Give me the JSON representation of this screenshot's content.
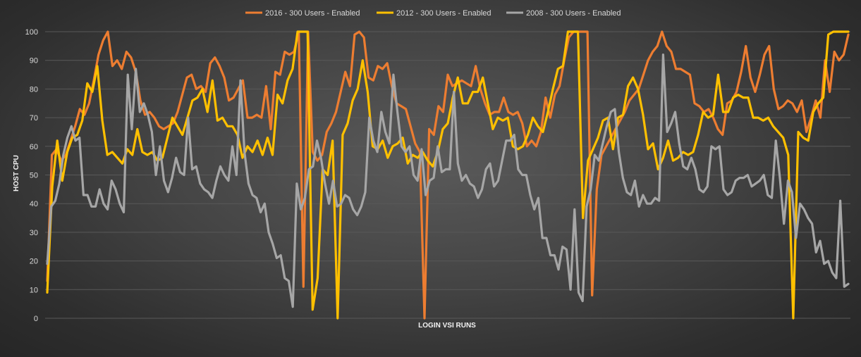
{
  "chart_data": {
    "type": "line",
    "title": "",
    "xlabel": "LOGIN VSI RUNS",
    "ylabel": "HOST CPU",
    "ylim": [
      0,
      100
    ],
    "yticks": [
      0,
      10,
      20,
      30,
      40,
      50,
      60,
      70,
      80,
      90,
      100
    ],
    "grid": true,
    "legend_position": "top",
    "series": [
      {
        "name": "2016 - 300 Users - Enabled",
        "color": "#ed7d31",
        "values": [
          13,
          57,
          59,
          55,
          57,
          62,
          67,
          73,
          71,
          75,
          83,
          92,
          97,
          100,
          88,
          90,
          87,
          93,
          91,
          86,
          76,
          71,
          72,
          70,
          67,
          66,
          67,
          68,
          72,
          78,
          84,
          85,
          80,
          81,
          79,
          89,
          91,
          88,
          84,
          76,
          77,
          80,
          83,
          70,
          70,
          71,
          70,
          81,
          66,
          86,
          85,
          93,
          92,
          93,
          100,
          11,
          100,
          58,
          55,
          57,
          65,
          68,
          72,
          79,
          86,
          81,
          99,
          100,
          98,
          84,
          83,
          88,
          87,
          89,
          81,
          75,
          74,
          73,
          67,
          61,
          58,
          0,
          66,
          64,
          74,
          72,
          85,
          81,
          82,
          83,
          82,
          81,
          88,
          80,
          75,
          71,
          72,
          72,
          77,
          72,
          71,
          72,
          68,
          60,
          62,
          60,
          65,
          77,
          70,
          78,
          81,
          90,
          98,
          100,
          100,
          100,
          100,
          8,
          45,
          57,
          60,
          63,
          66,
          69,
          72,
          76,
          78,
          80,
          85,
          90,
          93,
          95,
          100,
          95,
          93,
          87,
          87,
          86,
          85,
          75,
          74,
          72,
          73,
          70,
          66,
          64,
          75,
          76,
          79,
          86,
          95,
          84,
          79,
          85,
          92,
          95,
          80,
          73,
          74,
          76,
          75,
          72,
          76,
          65,
          70,
          76,
          70,
          90,
          79,
          93,
          90,
          92,
          99
        ],
        "x_start": 0.0
      },
      {
        "name": "2012 - 300 Users - Enabled",
        "color": "#ffc000",
        "values": [
          9,
          46,
          62,
          48,
          58,
          63,
          64,
          69,
          82,
          79,
          88,
          69,
          57,
          58,
          56,
          54,
          59,
          57,
          66,
          58,
          57,
          58,
          55,
          56,
          63,
          70,
          67,
          64,
          70,
          76,
          77,
          80,
          72,
          83,
          69,
          70,
          67,
          67,
          64,
          56,
          60,
          58,
          62,
          57,
          63,
          57,
          78,
          75,
          83,
          87,
          100,
          100,
          100,
          3,
          14,
          52,
          50,
          62,
          0,
          64,
          68,
          76,
          80,
          90,
          79,
          60,
          59,
          62,
          56,
          60,
          61,
          63,
          54,
          57,
          56,
          58,
          55,
          53,
          58,
          66,
          68,
          77,
          84,
          75,
          75,
          79,
          79,
          84,
          75,
          66,
          70,
          69,
          70,
          60,
          59,
          60,
          64,
          70,
          67,
          65,
          72,
          80,
          87,
          88,
          100,
          100,
          100,
          35,
          55,
          59,
          63,
          69,
          70,
          59,
          70,
          71,
          81,
          84,
          80,
          71,
          59,
          61,
          52,
          56,
          62,
          55,
          56,
          58,
          57,
          58,
          64,
          72,
          70,
          71,
          85,
          72,
          72,
          77,
          78,
          77,
          77,
          70,
          70,
          69,
          70,
          67,
          65,
          63,
          57,
          0,
          65,
          63,
          62,
          72,
          75,
          77,
          99,
          100,
          100,
          100,
          100
        ],
        "x_start": 0.0
      },
      {
        "name": "2008 - 300 Users - Enabled",
        "color": "#a6a6a6",
        "values": [
          19,
          39,
          41,
          47,
          57,
          63,
          67,
          62,
          63,
          43,
          43,
          39,
          39,
          45,
          40,
          38,
          48,
          45,
          40,
          37,
          85,
          66,
          87,
          72,
          75,
          71,
          65,
          50,
          60,
          48,
          44,
          49,
          56,
          51,
          50,
          70,
          52,
          53,
          47,
          45,
          44,
          42,
          48,
          53,
          50,
          48,
          60,
          50,
          83,
          58,
          47,
          43,
          42,
          37,
          40,
          30,
          26,
          21,
          22,
          14,
          13,
          4,
          47,
          38,
          42,
          52,
          53,
          62,
          56,
          47,
          40,
          48,
          39,
          40,
          43,
          42,
          38,
          36,
          39,
          44,
          70,
          62,
          58,
          72,
          65,
          61,
          85,
          72,
          60,
          58,
          60,
          50,
          48,
          59,
          43,
          48,
          49,
          60,
          51,
          52,
          52,
          79,
          54,
          48,
          50,
          47,
          46,
          42,
          45,
          52,
          54,
          46,
          48,
          55,
          62,
          62,
          64,
          52,
          50,
          50,
          43,
          38,
          42,
          28,
          28,
          22,
          22,
          17,
          25,
          24,
          10,
          38,
          9,
          6,
          39,
          45,
          57,
          55,
          61,
          67,
          72,
          73,
          58,
          49,
          44,
          43,
          48,
          39,
          43,
          40,
          40,
          42,
          41,
          92,
          65,
          68,
          72,
          61,
          53,
          52,
          56,
          52,
          45,
          44,
          46,
          60,
          59,
          60,
          45,
          43,
          44,
          48,
          49,
          49,
          50,
          46,
          47,
          48,
          50,
          43,
          42,
          62,
          49,
          33,
          48,
          44,
          28,
          40,
          38,
          35,
          33,
          23,
          27,
          19,
          20,
          16,
          14,
          41,
          11,
          12
        ],
        "x_start": 0.0
      }
    ]
  },
  "colors": {
    "gridline": "#595959",
    "text": "#d9d9d9"
  }
}
